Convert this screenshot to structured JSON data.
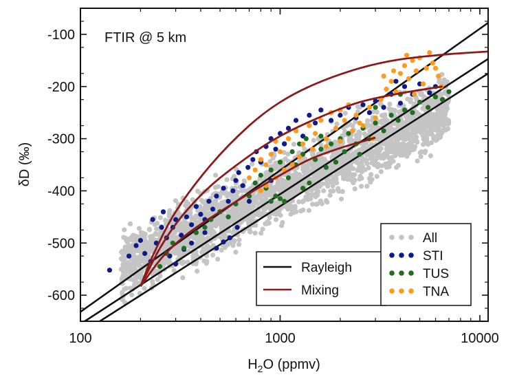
{
  "chart_data": {
    "type": "scatter",
    "annotation": "FTIR @ 5 km",
    "xlabel_main": "H",
    "xlabel_sub": "2",
    "xlabel_rest": "O (ppmv)",
    "ylabel": "δD (‰)",
    "xscale": "log",
    "xlim": [
      100,
      11000
    ],
    "ylim": [
      -650,
      -50
    ],
    "x_ticks": [
      100,
      1000,
      10000
    ],
    "x_tick_labels": [
      "100",
      "1000",
      "10000"
    ],
    "y_ticks": [
      -600,
      -500,
      -400,
      -300,
      -200,
      -100
    ],
    "y_tick_labels": [
      "-600",
      "-500",
      "-400",
      "-300",
      "-200",
      "-100"
    ],
    "legend_placement": "bottom-right",
    "line_legend": [
      {
        "name": "Rayleigh",
        "color": "#111111"
      },
      {
        "name": "Mixing",
        "color": "#8b1a1a"
      }
    ],
    "scatter_legend": [
      {
        "name": "All",
        "color": "#c4c4c4"
      },
      {
        "name": "STI",
        "color": "#0c1a8c"
      },
      {
        "name": "TUS",
        "color": "#1e6e1e"
      },
      {
        "name": "TNA",
        "color": "#ff9a1a"
      }
    ],
    "rayleigh_lines": [
      {
        "points": [
          [
            100,
            -632
          ],
          [
            11000,
            -78
          ]
        ]
      },
      {
        "points": [
          [
            105,
            -650
          ],
          [
            11000,
            -147
          ]
        ]
      },
      {
        "points": [
          [
            125,
            -650
          ],
          [
            11000,
            -175
          ]
        ]
      }
    ],
    "mixing_curves": [
      {
        "points": [
          [
            200,
            -583
          ],
          [
            230,
            -525
          ],
          [
            300,
            -440
          ],
          [
            450,
            -350
          ],
          [
            700,
            -275
          ],
          [
            1000,
            -230
          ],
          [
            1500,
            -195
          ],
          [
            2500,
            -165
          ],
          [
            4000,
            -148
          ],
          [
            7000,
            -138
          ],
          [
            11000,
            -133
          ]
        ]
      },
      {
        "points": [
          [
            200,
            -583
          ],
          [
            250,
            -510
          ],
          [
            320,
            -450
          ],
          [
            450,
            -390
          ],
          [
            700,
            -333
          ],
          [
            1000,
            -295
          ],
          [
            1600,
            -258
          ],
          [
            2500,
            -230
          ],
          [
            4000,
            -213
          ],
          [
            6500,
            -200
          ]
        ]
      },
      {
        "points": [
          [
            200,
            -583
          ],
          [
            260,
            -525
          ],
          [
            350,
            -480
          ],
          [
            500,
            -440
          ],
          [
            700,
            -405
          ],
          [
            1000,
            -370
          ],
          [
            1400,
            -340
          ],
          [
            2000,
            -318
          ],
          [
            3000,
            -298
          ]
        ]
      }
    ],
    "series": [
      {
        "name": "STI",
        "points": [
          [
            140,
            -552
          ],
          [
            175,
            -525
          ],
          [
            190,
            -505
          ],
          [
            200,
            -495
          ],
          [
            210,
            -520
          ],
          [
            225,
            -535
          ],
          [
            240,
            -500
          ],
          [
            255,
            -470
          ],
          [
            270,
            -490
          ],
          [
            290,
            -470
          ],
          [
            300,
            -455
          ],
          [
            320,
            -485
          ],
          [
            340,
            -450
          ],
          [
            360,
            -465
          ],
          [
            380,
            -430
          ],
          [
            400,
            -445
          ],
          [
            420,
            -455
          ],
          [
            440,
            -420
          ],
          [
            460,
            -435
          ],
          [
            480,
            -410
          ],
          [
            500,
            -440
          ],
          [
            520,
            -395
          ],
          [
            550,
            -420
          ],
          [
            580,
            -400
          ],
          [
            600,
            -380
          ],
          [
            620,
            -365
          ],
          [
            650,
            -390
          ],
          [
            690,
            -355
          ],
          [
            730,
            -340
          ],
          [
            760,
            -325
          ],
          [
            800,
            -345
          ],
          [
            850,
            -315
          ],
          [
            900,
            -300
          ],
          [
            950,
            -320
          ],
          [
            1000,
            -290
          ],
          [
            1050,
            -310
          ],
          [
            1100,
            -280
          ],
          [
            1200,
            -265
          ],
          [
            1300,
            -295
          ],
          [
            1400,
            -255
          ],
          [
            1500,
            -270
          ],
          [
            1600,
            -245
          ],
          [
            1800,
            -265
          ],
          [
            2000,
            -255
          ],
          [
            2200,
            -240
          ],
          [
            2400,
            -260
          ],
          [
            2600,
            -235
          ],
          [
            2800,
            -250
          ],
          [
            3000,
            -228
          ],
          [
            3300,
            -240
          ],
          [
            3600,
            -215
          ],
          [
            3800,
            -190
          ],
          [
            4000,
            -232
          ],
          [
            4200,
            -200
          ],
          [
            4600,
            -215
          ],
          [
            5000,
            -195
          ],
          [
            5600,
            -212
          ],
          [
            6000,
            -200
          ],
          [
            480,
            -510
          ],
          [
            520,
            -498
          ],
          [
            560,
            -490
          ],
          [
            610,
            -470
          ],
          [
            360,
            -500
          ],
          [
            330,
            -512
          ],
          [
            280,
            -525
          ],
          [
            300,
            -540
          ],
          [
            420,
            -480
          ],
          [
            700,
            -420
          ],
          [
            900,
            -380
          ],
          [
            260,
            -440
          ],
          [
            230,
            -455
          ]
        ]
      },
      {
        "name": "TUS",
        "points": [
          [
            250,
            -545
          ],
          [
            270,
            -520
          ],
          [
            290,
            -500
          ],
          [
            330,
            -510
          ],
          [
            380,
            -480
          ],
          [
            420,
            -470
          ],
          [
            450,
            -455
          ],
          [
            500,
            -440
          ],
          [
            550,
            -450
          ],
          [
            600,
            -425
          ],
          [
            700,
            -410
          ],
          [
            750,
            -385
          ],
          [
            800,
            -370
          ],
          [
            850,
            -395
          ],
          [
            900,
            -360
          ],
          [
            950,
            -410
          ],
          [
            1000,
            -345
          ],
          [
            1050,
            -420
          ],
          [
            1100,
            -375
          ],
          [
            1200,
            -350
          ],
          [
            1300,
            -330
          ],
          [
            1400,
            -385
          ],
          [
            1500,
            -340
          ],
          [
            1600,
            -320
          ],
          [
            1700,
            -355
          ],
          [
            1800,
            -310
          ],
          [
            1900,
            -345
          ],
          [
            2000,
            -300
          ],
          [
            2100,
            -325
          ],
          [
            2200,
            -290
          ],
          [
            2400,
            -310
          ],
          [
            2600,
            -280
          ],
          [
            2800,
            -300
          ],
          [
            3000,
            -270
          ],
          [
            3300,
            -285
          ],
          [
            3600,
            -255
          ],
          [
            3900,
            -265
          ],
          [
            4200,
            -245
          ],
          [
            4600,
            -250
          ],
          [
            5000,
            -230
          ],
          [
            5500,
            -240
          ],
          [
            6000,
            -220
          ],
          [
            6500,
            -225
          ],
          [
            7000,
            -210
          ],
          [
            1150,
            -325
          ],
          [
            1250,
            -310
          ],
          [
            1350,
            -300
          ],
          [
            1600,
            -295
          ],
          [
            2500,
            -330
          ],
          [
            4000,
            -215
          ],
          [
            3000,
            -240
          ],
          [
            1000,
            -415
          ],
          [
            900,
            -420
          ],
          [
            1300,
            -395
          ]
        ]
      },
      {
        "name": "TNA",
        "points": [
          [
            700,
            -375
          ],
          [
            750,
            -360
          ],
          [
            800,
            -340
          ],
          [
            850,
            -350
          ],
          [
            900,
            -330
          ],
          [
            950,
            -305
          ],
          [
            1000,
            -325
          ],
          [
            1100,
            -300
          ],
          [
            1200,
            -285
          ],
          [
            1300,
            -310
          ],
          [
            1400,
            -275
          ],
          [
            1500,
            -290
          ],
          [
            1600,
            -265
          ],
          [
            1700,
            -300
          ],
          [
            1800,
            -250
          ],
          [
            1900,
            -280
          ],
          [
            2000,
            -245
          ],
          [
            2100,
            -265
          ],
          [
            2200,
            -235
          ],
          [
            2400,
            -255
          ],
          [
            2600,
            -275
          ],
          [
            2800,
            -240
          ],
          [
            3000,
            -260
          ],
          [
            3200,
            -225
          ],
          [
            3400,
            -205
          ],
          [
            3600,
            -190
          ],
          [
            3800,
            -210
          ],
          [
            4000,
            -175
          ],
          [
            4200,
            -160
          ],
          [
            4400,
            -185
          ],
          [
            4600,
            -150
          ],
          [
            4800,
            -170
          ],
          [
            5000,
            -145
          ],
          [
            5400,
            -165
          ],
          [
            5800,
            -155
          ],
          [
            6200,
            -180
          ],
          [
            6400,
            -200
          ],
          [
            5200,
            -195
          ],
          [
            4700,
            -215
          ],
          [
            3300,
            -180
          ],
          [
            2900,
            -300
          ],
          [
            2300,
            -285
          ],
          [
            1250,
            -335
          ],
          [
            1150,
            -350
          ],
          [
            1450,
            -320
          ],
          [
            800,
            -400
          ],
          [
            850,
            -390
          ],
          [
            950,
            -375
          ],
          [
            1050,
            -360
          ],
          [
            1700,
            -315
          ],
          [
            2000,
            -305
          ],
          [
            2500,
            -270
          ],
          [
            3700,
            -170
          ],
          [
            4300,
            -140
          ],
          [
            5600,
            -135
          ],
          [
            6000,
            -165
          ]
        ]
      }
    ]
  }
}
